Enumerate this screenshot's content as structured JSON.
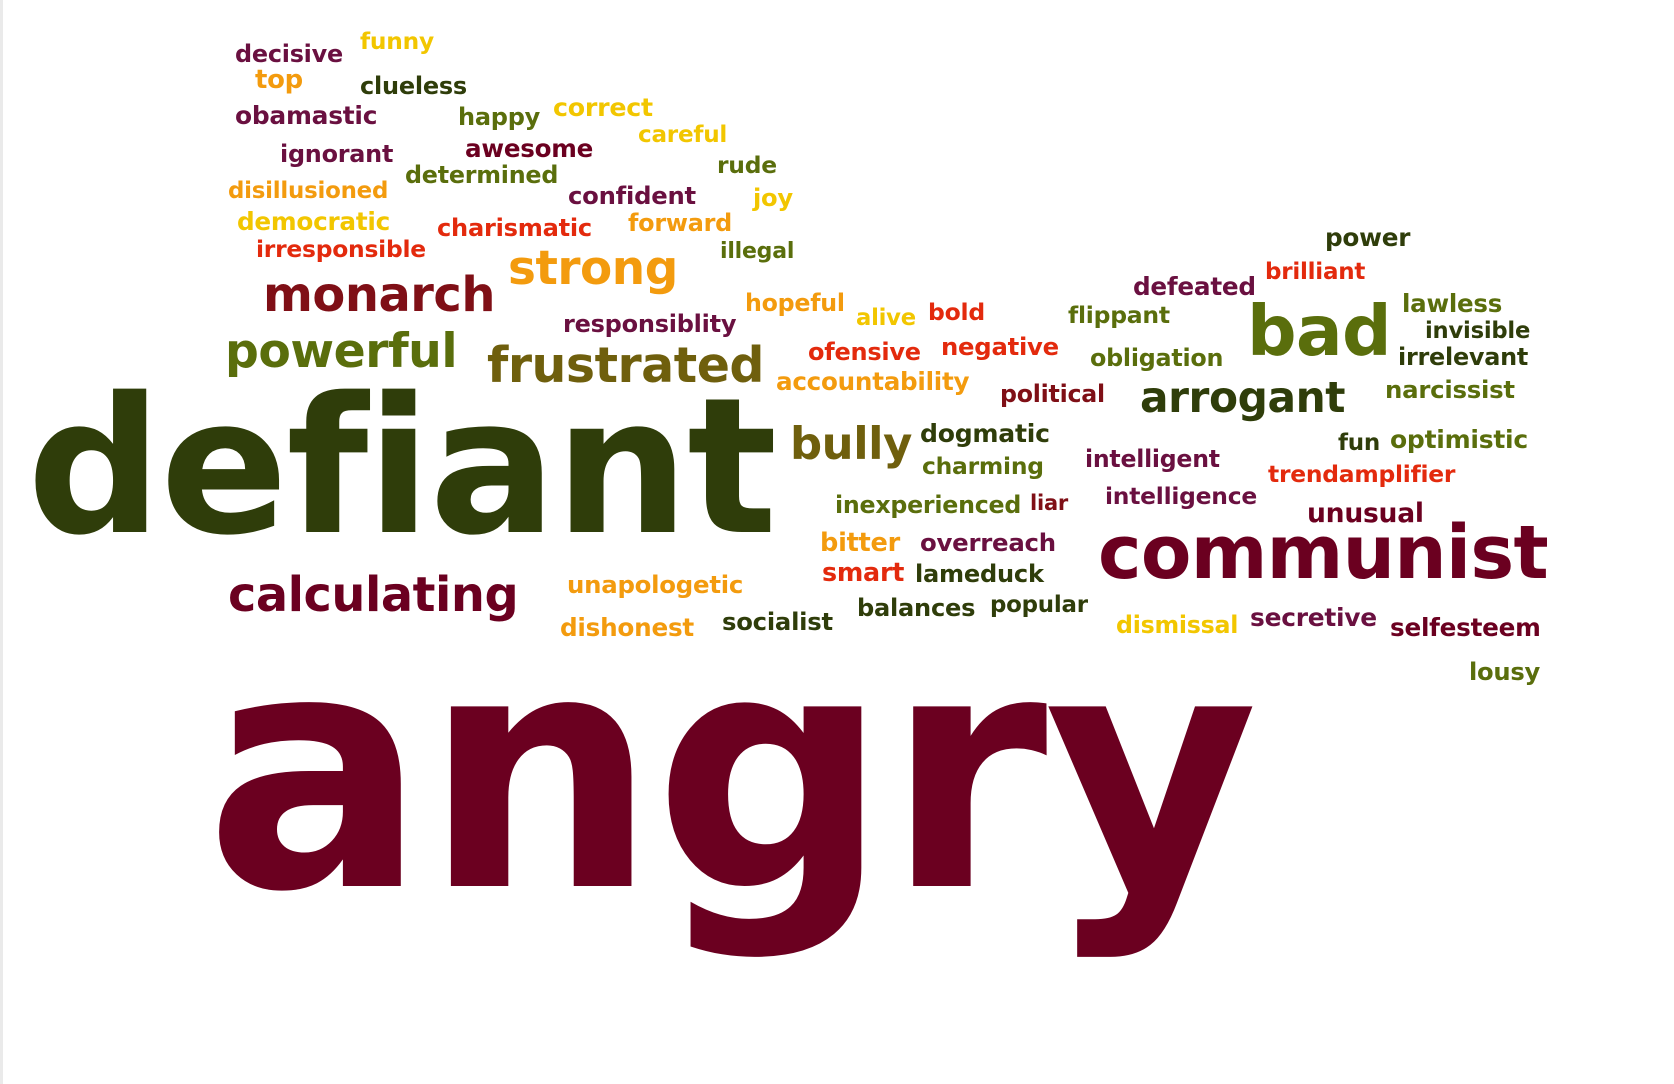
{
  "palette": {
    "maroon": "#6b0020",
    "olive_dark": "#2f3d0a",
    "olive": "#5a6e0c",
    "olive_brown": "#6f5f0d",
    "orange": "#f39b0e",
    "yellow": "#f2c600",
    "red": "#e32a0d",
    "dark_red": "#7f0f16",
    "plum": "#6a1040"
  },
  "words": [
    {
      "text": "funny",
      "color": "#f2c600"
    },
    {
      "text": "decisive",
      "color": "#6a1040"
    },
    {
      "text": "top",
      "color": "#f39b0e"
    },
    {
      "text": "clueless",
      "color": "#2f3d0a"
    },
    {
      "text": "obamastic",
      "color": "#6a1040"
    },
    {
      "text": "correct",
      "color": "#f2c600"
    },
    {
      "text": "happy",
      "color": "#5a6e0c"
    },
    {
      "text": "careful",
      "color": "#f2c600"
    },
    {
      "text": "ignorant",
      "color": "#6a1040"
    },
    {
      "text": "awesome",
      "color": "#6b0020"
    },
    {
      "text": "rude",
      "color": "#5a6e0c"
    },
    {
      "text": "determined",
      "color": "#5a6e0c"
    },
    {
      "text": "disillusioned",
      "color": "#f39b0e"
    },
    {
      "text": "confident",
      "color": "#6a1040"
    },
    {
      "text": "joy",
      "color": "#f2c600"
    },
    {
      "text": "democratic",
      "color": "#f2c600"
    },
    {
      "text": "forward",
      "color": "#f39b0e"
    },
    {
      "text": "charismatic",
      "color": "#e32a0d"
    },
    {
      "text": "irresponsible",
      "color": "#e32a0d"
    },
    {
      "text": "illegal",
      "color": "#5a6e0c"
    },
    {
      "text": "power",
      "color": "#2f3d0a"
    },
    {
      "text": "strong",
      "color": "#f39b0e"
    },
    {
      "text": "brilliant",
      "color": "#e32a0d"
    },
    {
      "text": "defeated",
      "color": "#6a1040"
    },
    {
      "text": "monarch",
      "color": "#7f0f16"
    },
    {
      "text": "hopeful",
      "color": "#f39b0e"
    },
    {
      "text": "lawless",
      "color": "#5a6e0c"
    },
    {
      "text": "alive",
      "color": "#f2c600"
    },
    {
      "text": "bold",
      "color": "#e32a0d"
    },
    {
      "text": "flippant",
      "color": "#5a6e0c"
    },
    {
      "text": "responsiblity",
      "color": "#6a1040"
    },
    {
      "text": "invisible",
      "color": "#2f3d0a"
    },
    {
      "text": "bad",
      "color": "#5a6e0c"
    },
    {
      "text": "powerful",
      "color": "#5a6e0c"
    },
    {
      "text": "ofensive",
      "color": "#e32a0d"
    },
    {
      "text": "negative",
      "color": "#e32a0d"
    },
    {
      "text": "obligation",
      "color": "#5a6e0c"
    },
    {
      "text": "irrelevant",
      "color": "#2f3d0a"
    },
    {
      "text": "frustrated",
      "color": "#6f5f0d"
    },
    {
      "text": "accountability",
      "color": "#f39b0e"
    },
    {
      "text": "narcissist",
      "color": "#5a6e0c"
    },
    {
      "text": "political",
      "color": "#7f0f16"
    },
    {
      "text": "arrogant",
      "color": "#2f3d0a"
    },
    {
      "text": "dogmatic",
      "color": "#2f3d0a"
    },
    {
      "text": "fun",
      "color": "#2f3d0a"
    },
    {
      "text": "optimistic",
      "color": "#5a6e0c"
    },
    {
      "text": "defiant",
      "color": "#2f3d0a"
    },
    {
      "text": "bully",
      "color": "#6f5f0d"
    },
    {
      "text": "intelligent",
      "color": "#6a1040"
    },
    {
      "text": "charming",
      "color": "#5a6e0c"
    },
    {
      "text": "trendamplifier",
      "color": "#e32a0d"
    },
    {
      "text": "intelligence",
      "color": "#6a1040"
    },
    {
      "text": "inexperienced",
      "color": "#5a6e0c"
    },
    {
      "text": "liar",
      "color": "#7f0f16"
    },
    {
      "text": "unusual",
      "color": "#6b0020"
    },
    {
      "text": "bitter",
      "color": "#f39b0e"
    },
    {
      "text": "overreach",
      "color": "#6a1040"
    },
    {
      "text": "communist",
      "color": "#6b0020"
    },
    {
      "text": "smart",
      "color": "#e32a0d"
    },
    {
      "text": "lameduck",
      "color": "#2f3d0a"
    },
    {
      "text": "calculating",
      "color": "#6b0020"
    },
    {
      "text": "unapologetic",
      "color": "#f39b0e"
    },
    {
      "text": "balances",
      "color": "#2f3d0a"
    },
    {
      "text": "popular",
      "color": "#2f3d0a"
    },
    {
      "text": "secretive",
      "color": "#6a1040"
    },
    {
      "text": "socialist",
      "color": "#2f3d0a"
    },
    {
      "text": "dishonest",
      "color": "#f39b0e"
    },
    {
      "text": "dismissal",
      "color": "#f2c600"
    },
    {
      "text": "selfesteem",
      "color": "#6b0020"
    },
    {
      "text": "lousy",
      "color": "#5a6e0c"
    },
    {
      "text": "angry",
      "color": "#6b0020"
    }
  ]
}
